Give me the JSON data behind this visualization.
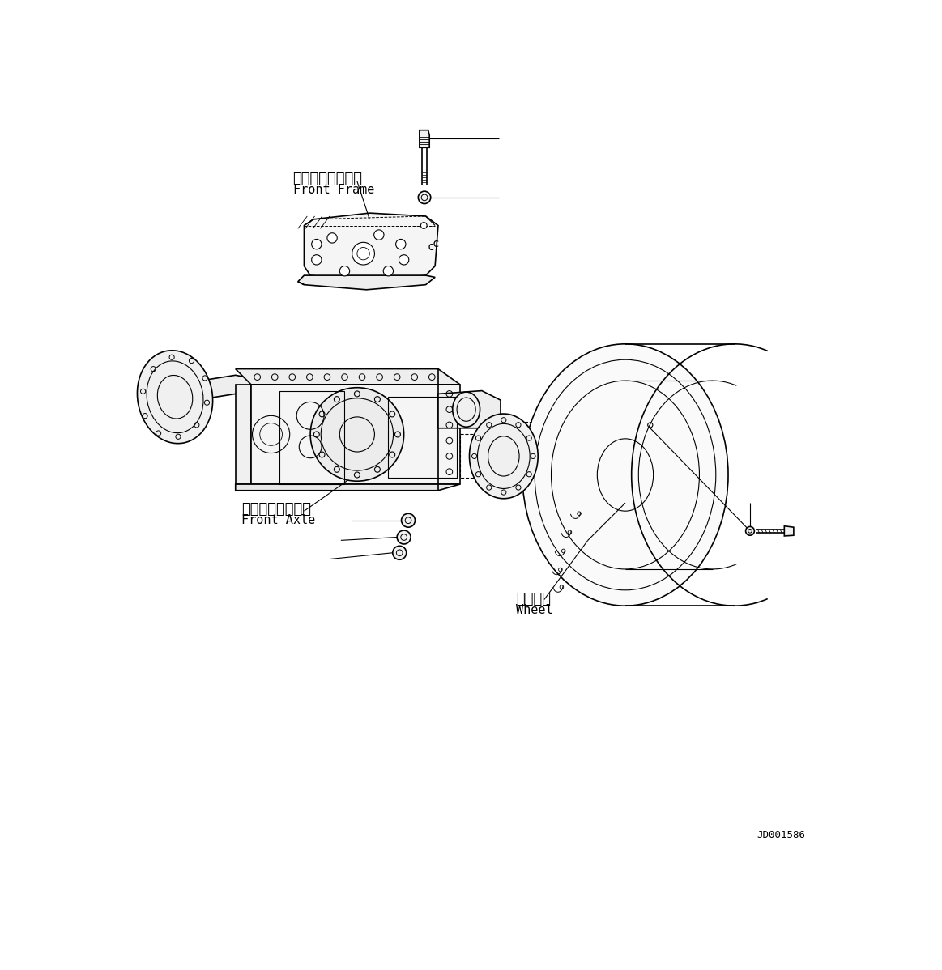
{
  "bg_color": "#ffffff",
  "line_color": "#000000",
  "diagram_id": "JD001586",
  "labels": {
    "front_frame_jp": "フロントフレーム",
    "front_frame_en": "Front Frame",
    "front_axle_jp": "フロントアクスル",
    "front_axle_en": "Front Axle",
    "wheel_jp": "ホイール",
    "wheel_en": "Wheel"
  },
  "font_size_jp": 13,
  "font_size_en": 11,
  "font_size_id": 9,
  "lw_main": 1.2,
  "lw_thin": 0.8,
  "lw_leader": 0.8
}
